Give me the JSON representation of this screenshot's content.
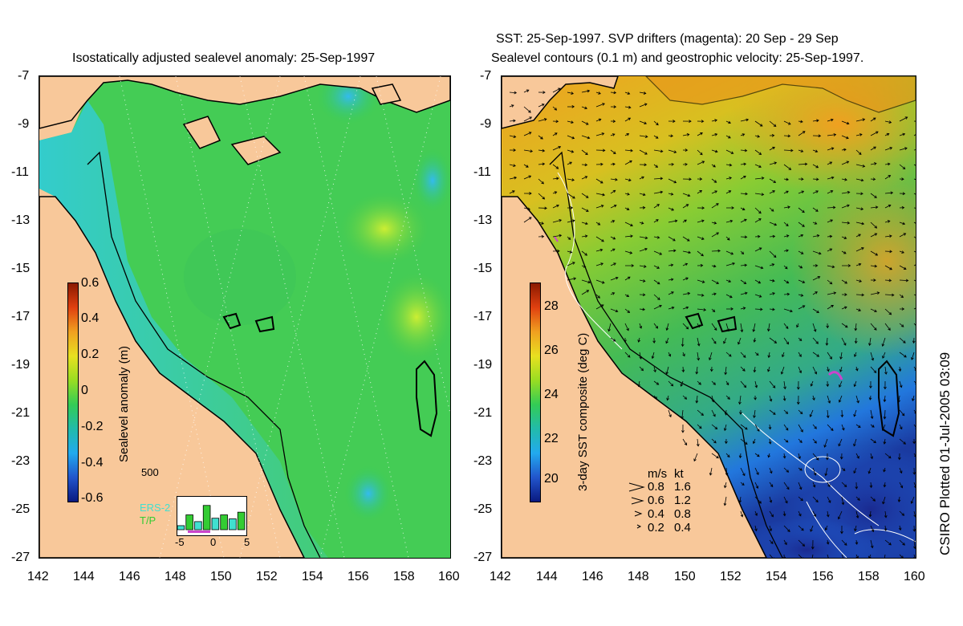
{
  "left": {
    "title": "Isostatically adjusted sealevel anomaly: 25-Sep-1997",
    "colorbar": {
      "label": "Sealevel anomaly (m)",
      "ticks": [
        "0.6",
        "0.4",
        "0.2",
        "0",
        "-0.2",
        "-0.4",
        "-0.6"
      ]
    },
    "histogram": {
      "ymax_label": "500",
      "x_ticks": [
        "-5",
        "0",
        "5"
      ],
      "series_labels": [
        "ERS-2",
        "T/P"
      ],
      "ers2_color": "#40e0d0",
      "tp_color": "#33cc33",
      "bars": [
        60,
        220,
        120,
        360,
        170,
        220,
        160,
        260
      ]
    }
  },
  "right": {
    "title_line1": "SST: 25-Sep-1997. SVP drifters (magenta): 20 Sep - 29 Sep",
    "title_line2": "Sealevel contours (0.1 m) and geostrophic velocity: 25-Sep-1997.",
    "colorbar": {
      "label": "3-day SST composite (deg C)",
      "ticks": [
        "28",
        "26",
        "24",
        "22",
        "20"
      ]
    },
    "velocity_legend": {
      "header_ms": "m/s",
      "header_kt": "kt",
      "rows": [
        {
          "ms": "0.8",
          "kt": "1.6"
        },
        {
          "ms": "0.6",
          "kt": "1.2"
        },
        {
          "ms": "0.4",
          "kt": "0.8"
        },
        {
          "ms": "0.2",
          "kt": "0.4"
        }
      ]
    }
  },
  "axes": {
    "lat_ticks": [
      "-7",
      "-9",
      "-11",
      "-13",
      "-15",
      "-17",
      "-19",
      "-21",
      "-23",
      "-25",
      "-27"
    ],
    "lon_ticks": [
      "142",
      "144",
      "146",
      "148",
      "150",
      "152",
      "154",
      "156",
      "158",
      "160"
    ]
  },
  "credit": "CSIRO Plotted 01-Jul-2005 03:09",
  "colors": {
    "land": "#f8c89a",
    "sla_ocean": "#33cc55",
    "sla_high": "#bbee33",
    "sla_low": "#33ccdd",
    "sst_warm": "#f0a020",
    "sst_mid": "#55cc44",
    "sst_cool": "#2266dd",
    "drifter": "#cc44cc"
  }
}
